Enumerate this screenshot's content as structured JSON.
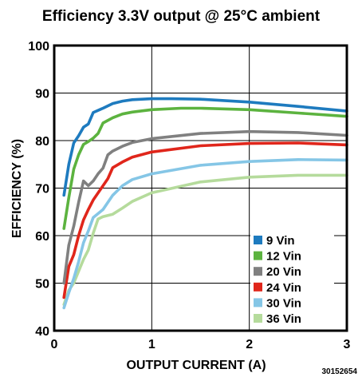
{
  "chart_data": {
    "type": "line",
    "title": "Efficiency 3.3V output @ 25°C ambient",
    "xlabel": "OUTPUT CURRENT (A)",
    "ylabel": "EFFICIENCY (%)",
    "xlim": [
      0,
      3
    ],
    "ylim": [
      40,
      100
    ],
    "xticks": [
      "0",
      "1",
      "2",
      "3"
    ],
    "yticks": [
      "40",
      "50",
      "60",
      "70",
      "80",
      "90",
      "100"
    ],
    "grid": true,
    "legend_position": "bottom-right",
    "figure_id": "30152654",
    "series": [
      {
        "name": "9 Vin",
        "color": "#1e7bbf",
        "points": [
          [
            0.1,
            68.5
          ],
          [
            0.15,
            75
          ],
          [
            0.2,
            79.5
          ],
          [
            0.25,
            81
          ],
          [
            0.3,
            82.8
          ],
          [
            0.35,
            83.5
          ],
          [
            0.4,
            85.9
          ],
          [
            0.5,
            86.8
          ],
          [
            0.6,
            87.8
          ],
          [
            0.7,
            88.3
          ],
          [
            0.8,
            88.6
          ],
          [
            1.0,
            88.8
          ],
          [
            1.2,
            88.8
          ],
          [
            1.5,
            88.7
          ],
          [
            2.0,
            88.1
          ],
          [
            2.5,
            87.2
          ],
          [
            3.0,
            86.2
          ]
        ]
      },
      {
        "name": "12 Vin",
        "color": "#5cb33f",
        "points": [
          [
            0.1,
            61.5
          ],
          [
            0.15,
            68
          ],
          [
            0.2,
            74
          ],
          [
            0.25,
            77
          ],
          [
            0.3,
            79.2
          ],
          [
            0.35,
            79.8
          ],
          [
            0.4,
            80.5
          ],
          [
            0.45,
            81.5
          ],
          [
            0.5,
            83.7
          ],
          [
            0.6,
            84.8
          ],
          [
            0.7,
            85.6
          ],
          [
            0.8,
            86
          ],
          [
            1.0,
            86.5
          ],
          [
            1.3,
            86.8
          ],
          [
            1.5,
            86.8
          ],
          [
            2.0,
            86.5
          ],
          [
            2.5,
            85.8
          ],
          [
            3.0,
            85.1
          ]
        ]
      },
      {
        "name": "20 Vin",
        "color": "#808080",
        "points": [
          [
            0.1,
            50
          ],
          [
            0.15,
            58
          ],
          [
            0.2,
            62
          ],
          [
            0.25,
            67
          ],
          [
            0.3,
            71.5
          ],
          [
            0.35,
            70.5
          ],
          [
            0.4,
            71.5
          ],
          [
            0.45,
            73
          ],
          [
            0.5,
            74.2
          ],
          [
            0.55,
            77
          ],
          [
            0.6,
            77.8
          ],
          [
            0.7,
            78.8
          ],
          [
            0.8,
            79.6
          ],
          [
            1.0,
            80.4
          ],
          [
            1.5,
            81.5
          ],
          [
            2.0,
            81.9
          ],
          [
            2.5,
            81.7
          ],
          [
            3.0,
            81.1
          ]
        ]
      },
      {
        "name": "24 Vin",
        "color": "#e0261b",
        "points": [
          [
            0.1,
            47
          ],
          [
            0.15,
            53.5
          ],
          [
            0.2,
            56
          ],
          [
            0.25,
            60
          ],
          [
            0.3,
            63.3
          ],
          [
            0.35,
            65.5
          ],
          [
            0.4,
            67.5
          ],
          [
            0.5,
            70.5
          ],
          [
            0.55,
            72
          ],
          [
            0.6,
            74.3
          ],
          [
            0.7,
            75.5
          ],
          [
            0.8,
            76.5
          ],
          [
            1.0,
            77.6
          ],
          [
            1.5,
            78.9
          ],
          [
            2.0,
            79.4
          ],
          [
            2.5,
            79.5
          ],
          [
            3.0,
            79.1
          ]
        ]
      },
      {
        "name": "30 Vin",
        "color": "#85c6e6",
        "points": [
          [
            0.1,
            44.8
          ],
          [
            0.15,
            48
          ],
          [
            0.2,
            51
          ],
          [
            0.25,
            54.5
          ],
          [
            0.3,
            58.5
          ],
          [
            0.35,
            61
          ],
          [
            0.4,
            63.8
          ],
          [
            0.5,
            65.5
          ],
          [
            0.6,
            68.5
          ],
          [
            0.7,
            70.5
          ],
          [
            0.8,
            71.8
          ],
          [
            1.0,
            73
          ],
          [
            1.5,
            74.8
          ],
          [
            2.0,
            75.6
          ],
          [
            2.5,
            76
          ],
          [
            3.0,
            75.9
          ]
        ]
      },
      {
        "name": "36 Vin",
        "color": "#b5db9c",
        "points": [
          [
            0.1,
            45.5
          ],
          [
            0.15,
            48.5
          ],
          [
            0.2,
            50
          ],
          [
            0.25,
            52.5
          ],
          [
            0.3,
            55
          ],
          [
            0.35,
            57
          ],
          [
            0.4,
            60.5
          ],
          [
            0.45,
            63.5
          ],
          [
            0.5,
            64
          ],
          [
            0.6,
            64.5
          ],
          [
            0.7,
            65.8
          ],
          [
            0.8,
            67.2
          ],
          [
            1.0,
            69
          ],
          [
            1.5,
            71.3
          ],
          [
            2.0,
            72.3
          ],
          [
            2.5,
            72.7
          ],
          [
            3.0,
            72.7
          ]
        ]
      }
    ]
  }
}
